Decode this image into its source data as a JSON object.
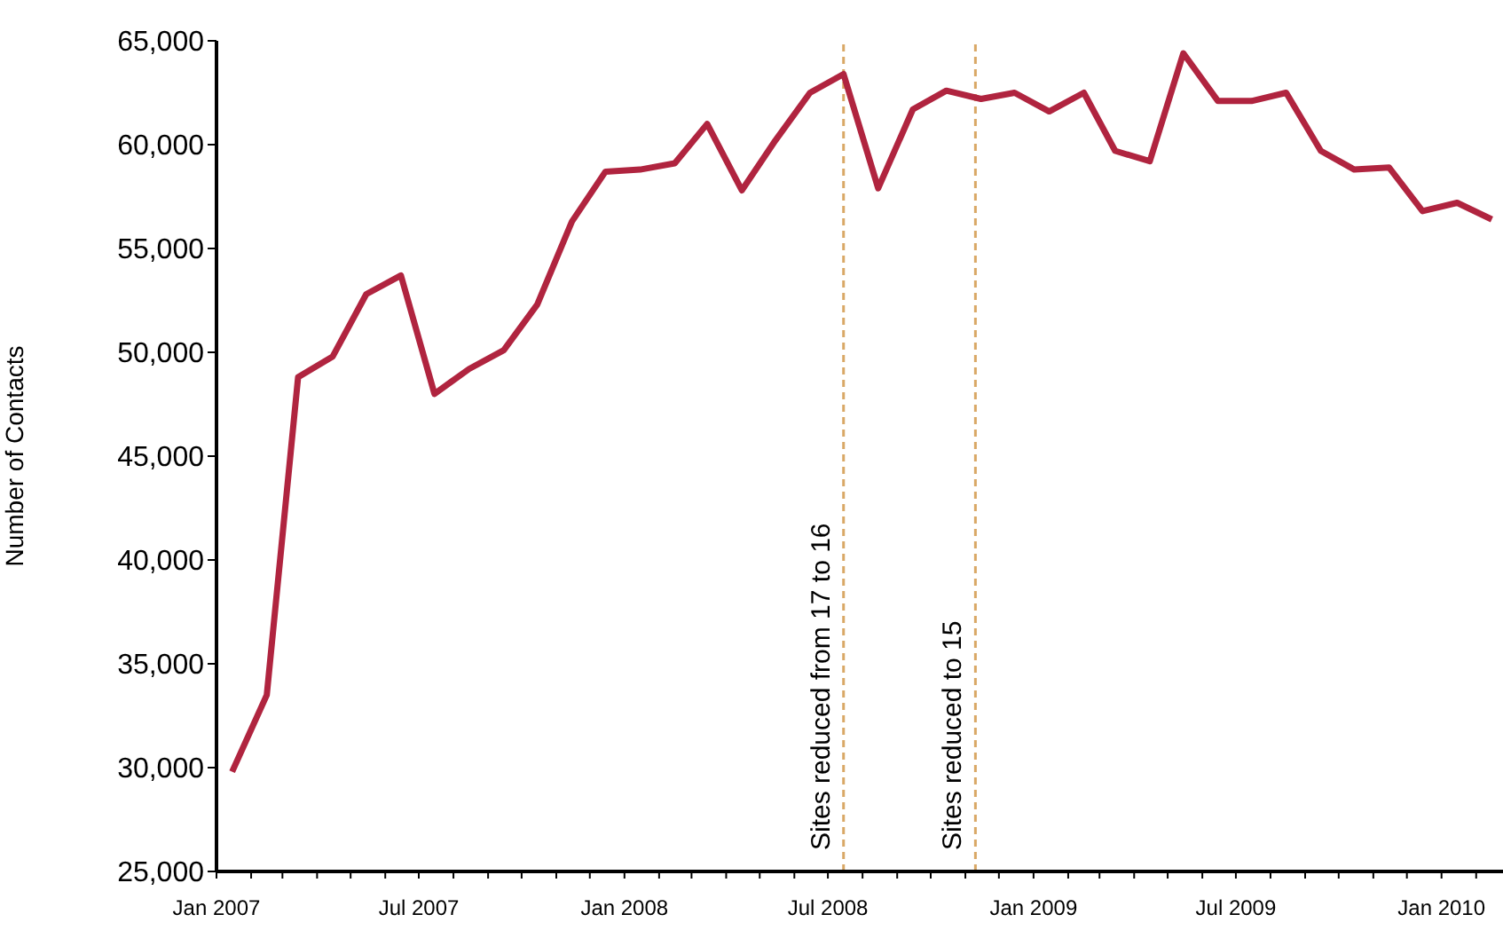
{
  "chart_data": {
    "type": "line",
    "ylabel": "Number of Contacts",
    "x": [
      "2007-01-15",
      "2007-02-15",
      "2007-03-15",
      "2007-04-15",
      "2007-05-15",
      "2007-06-15",
      "2007-07-15",
      "2007-08-15",
      "2007-09-15",
      "2007-10-15",
      "2007-11-15",
      "2007-12-15",
      "2008-01-15",
      "2008-02-15",
      "2008-03-15",
      "2008-04-15",
      "2008-05-15",
      "2008-06-15",
      "2008-07-15",
      "2008-08-15",
      "2008-09-15",
      "2008-10-15",
      "2008-11-15",
      "2008-12-15",
      "2009-01-15",
      "2009-02-15",
      "2009-03-15",
      "2009-04-15",
      "2009-05-15",
      "2009-06-15",
      "2009-07-15",
      "2009-08-15",
      "2009-09-15",
      "2009-10-15",
      "2009-11-15",
      "2009-12-15",
      "2010-01-15",
      "2010-02-15"
    ],
    "series": [
      {
        "color": "#b0243f",
        "values": [
          29800,
          33500,
          48800,
          49800,
          52800,
          53700,
          48000,
          49200,
          50100,
          52300,
          56300,
          58700,
          58800,
          59100,
          61000,
          57800,
          60200,
          62500,
          63400,
          57900,
          61700,
          62600,
          62200,
          62500,
          61600,
          62500,
          59700,
          59200,
          64400,
          62100,
          62100,
          62500,
          59700,
          58800,
          58900,
          56800,
          57200,
          56400
        ]
      }
    ],
    "xlim": [
      "2007-01-01",
      "2010-02-25"
    ],
    "xticks": [
      {
        "value": "2007-01",
        "label": "Jan 2007"
      },
      {
        "value": "2007-02",
        "label": null
      },
      {
        "value": "2007-03",
        "label": null
      },
      {
        "value": "2007-04",
        "label": null
      },
      {
        "value": "2007-05",
        "label": null
      },
      {
        "value": "2007-06",
        "label": null
      },
      {
        "value": "2007-07",
        "label": "Jul 2007"
      },
      {
        "value": "2007-08",
        "label": null
      },
      {
        "value": "2007-09",
        "label": null
      },
      {
        "value": "2007-10",
        "label": null
      },
      {
        "value": "2007-11",
        "label": null
      },
      {
        "value": "2007-12",
        "label": null
      },
      {
        "value": "2008-01",
        "label": "Jan 2008"
      },
      {
        "value": "2008-02",
        "label": null
      },
      {
        "value": "2008-03",
        "label": null
      },
      {
        "value": "2008-04",
        "label": null
      },
      {
        "value": "2008-05",
        "label": null
      },
      {
        "value": "2008-06",
        "label": null
      },
      {
        "value": "2008-07",
        "label": "Jul 2008"
      },
      {
        "value": "2008-08",
        "label": null
      },
      {
        "value": "2008-09",
        "label": null
      },
      {
        "value": "2008-10",
        "label": null
      },
      {
        "value": "2008-11",
        "label": null
      },
      {
        "value": "2008-12",
        "label": null
      },
      {
        "value": "2009-01",
        "label": "Jan 2009"
      },
      {
        "value": "2009-02",
        "label": null
      },
      {
        "value": "2009-03",
        "label": null
      },
      {
        "value": "2009-04",
        "label": null
      },
      {
        "value": "2009-05",
        "label": null
      },
      {
        "value": "2009-06",
        "label": null
      },
      {
        "value": "2009-07",
        "label": "Jul 2009"
      },
      {
        "value": "2009-08",
        "label": null
      },
      {
        "value": "2009-09",
        "label": null
      },
      {
        "value": "2009-10",
        "label": null
      },
      {
        "value": "2009-11",
        "label": null
      },
      {
        "value": "2009-12",
        "label": null
      },
      {
        "value": "2010-01",
        "label": "Jan 2010"
      },
      {
        "value": "2010-02",
        "label": null
      }
    ],
    "ylim": [
      25000,
      65000
    ],
    "yticks": [
      {
        "value": 25000,
        "label": "25,000"
      },
      {
        "value": 30000,
        "label": "30,000"
      },
      {
        "value": 35000,
        "label": "35,000"
      },
      {
        "value": 40000,
        "label": "40,000"
      },
      {
        "value": 45000,
        "label": "45,000"
      },
      {
        "value": 50000,
        "label": "50,000"
      },
      {
        "value": 55000,
        "label": "55,000"
      },
      {
        "value": 60000,
        "label": "60,000"
      },
      {
        "value": 65000,
        "label": "65,000"
      }
    ],
    "ref_lines": [
      {
        "axis": "x",
        "value": "2008-07-15",
        "label": "Sites reduced from 17 to 16",
        "color": "#d9a866",
        "line_style": "dashed"
      },
      {
        "axis": "x",
        "value": "2008-11-10",
        "label": "Sites reduced to 15",
        "color": "#d9a866",
        "line_style": "dashed"
      }
    ],
    "grid": false,
    "legend": false,
    "marker": "none",
    "line_style": "solid"
  }
}
